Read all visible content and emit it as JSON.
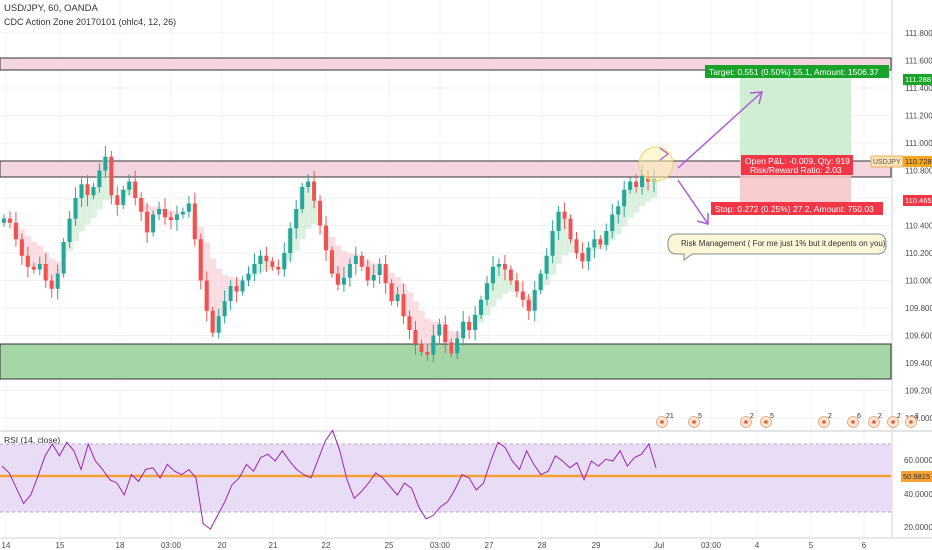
{
  "header": {
    "symbol_line": "USD/JPY, 60, OANDA",
    "indicator_line": "CDC Action Zone 20170101 (ohlc4, 12, 26)"
  },
  "rsi_panel": {
    "label": "RSI (14, close)"
  },
  "price_axis": {
    "ticks": [
      "111.800",
      "111.600",
      "111.400",
      "111.200",
      "111.000",
      "110.800",
      "110.600",
      "110.400",
      "110.200",
      "110.000",
      "109.800",
      "109.600",
      "109.400",
      "109.200",
      "109.000"
    ],
    "badge_target": "111.288",
    "badge_price": "110.728",
    "badge_stop": "110.465",
    "symbol_tag": "USDJPY"
  },
  "rsi_axis": {
    "ticks": [
      "60.0000",
      "40.0000",
      "20.0000"
    ],
    "badge": "50.9815"
  },
  "time_axis": {
    "ticks": [
      "14",
      "15",
      "18",
      "03:00",
      "20",
      "21",
      "22",
      "25",
      "03:00",
      "27",
      "28",
      "29",
      "Jul",
      "03:00",
      "4",
      "5",
      "6"
    ]
  },
  "position": {
    "target_label": "Target: 0.551 (0.50%) 55.1, Amount: 1506.37",
    "pnl_label": "Open P&L: -0.009, Qty: 919",
    "ratio_label": "Risk/Reward Ratio: 2.03",
    "stop_label": "Stop: 0.272 (0.25%) 27.2, Amount: 750.03",
    "annotation": "Risk Management ( For me just 1% but it depents on you)"
  },
  "events": [
    "21",
    "5",
    "2",
    "5",
    "2",
    "6",
    "2",
    "2",
    "2"
  ],
  "colors": {
    "up": "#26a69a",
    "down": "#ef5350",
    "target_green": "#1aa32b",
    "stop_red": "#f23645",
    "rsi_line": "#9c27b0",
    "rsi_bg": "#e9dcf5",
    "rsi_level": "#f7a034",
    "zone_green": "#a5d6a7",
    "zone_pink": "#f4d6e0",
    "arrow": "#b05cd8",
    "price_badge": "#f5a623"
  },
  "chart_data": {
    "type": "candlestick",
    "symbol": "USD/JPY",
    "timeframe": "60",
    "price_range": [
      108.9,
      111.9
    ],
    "rsi_range": [
      15,
      85
    ],
    "support_zone": [
      109.26,
      109.5
    ],
    "resistance_zone": [
      110.64,
      110.73
    ],
    "upper_zone": [
      111.35,
      111.43
    ],
    "entry": 110.737,
    "target": 111.288,
    "stop": 110.465,
    "current_price": 110.728,
    "rsi_levels": [
      70,
      50.9815,
      30
    ],
    "price_path": [
      110.45,
      110.42,
      110.3,
      110.18,
      110.1,
      110.08,
      110.12,
      110.0,
      109.94,
      110.05,
      110.28,
      110.45,
      110.6,
      110.7,
      110.62,
      110.68,
      110.8,
      110.9,
      110.62,
      110.55,
      110.66,
      110.72,
      110.6,
      110.5,
      110.35,
      110.48,
      110.52,
      110.46,
      110.44,
      110.48,
      110.5,
      110.56,
      110.3,
      110.0,
      109.78,
      109.62,
      109.74,
      109.85,
      109.96,
      109.92,
      110.0,
      110.05,
      110.12,
      110.18,
      110.14,
      110.1,
      110.08,
      110.2,
      110.38,
      110.52,
      110.68,
      110.72,
      110.58,
      110.4,
      110.22,
      110.05,
      109.97,
      110.02,
      110.12,
      110.18,
      110.1,
      110.0,
      110.04,
      110.12,
      109.98,
      109.85,
      109.9,
      109.74,
      109.64,
      109.54,
      109.48,
      109.46,
      109.6,
      109.68,
      109.55,
      109.47,
      109.58,
      109.7,
      109.64,
      109.75,
      109.86,
      109.98,
      110.1,
      110.12,
      110.08,
      110.0,
      109.92,
      109.86,
      109.78,
      109.93,
      110.05,
      110.18,
      110.36,
      110.5,
      110.45,
      110.3,
      110.2,
      110.14,
      110.24,
      110.3,
      110.26,
      110.36,
      110.48,
      110.54,
      110.66,
      110.72,
      110.68,
      110.76,
      110.72,
      110.74
    ],
    "rsi_path": [
      57,
      53,
      44,
      35,
      40,
      51,
      63,
      70,
      63,
      71,
      66,
      55,
      70,
      60,
      55,
      49,
      47,
      40,
      52,
      48,
      55,
      56,
      50,
      58,
      54,
      52,
      55,
      50,
      23,
      20,
      28,
      36,
      46,
      50,
      58,
      54,
      62,
      64,
      60,
      66,
      60,
      55,
      52,
      50,
      61,
      72,
      78,
      66,
      49,
      38,
      42,
      47,
      53,
      50,
      45,
      40,
      47,
      44,
      33,
      26,
      28,
      33,
      36,
      43,
      52,
      50,
      43,
      47,
      60,
      71,
      68,
      60,
      55,
      66,
      58,
      52,
      54,
      63,
      60,
      56,
      59,
      49,
      60,
      57,
      61,
      60,
      66,
      57,
      62,
      64,
      70,
      56
    ]
  }
}
